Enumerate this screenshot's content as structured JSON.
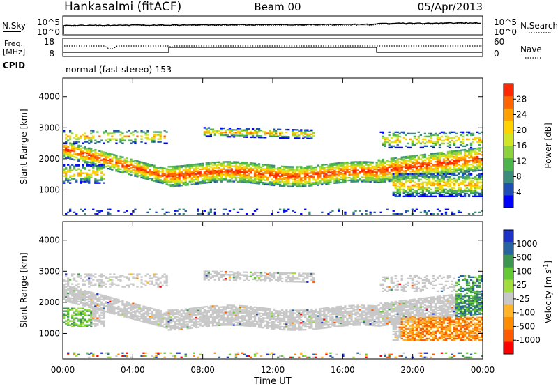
{
  "header": {
    "station": "Hankasalmi (fitACF)",
    "beam": "Beam 00",
    "date": "05/Apr/2013"
  },
  "noise_panel": {
    "left_label": "N.Sky",
    "right_label": "N.Search",
    "left_ticks": [
      "10^5",
      "10^0"
    ],
    "right_ticks": [
      "10^5",
      "10^0"
    ]
  },
  "freq_panel": {
    "left_label_1": "Freq.",
    "left_label_2": "[MHz]",
    "right_label": "Nave",
    "left_ticks": [
      "18",
      "8"
    ],
    "right_ticks": [
      "60",
      "0"
    ]
  },
  "cpid": {
    "label": "CPID",
    "mode": "normal (fast stereo) 153"
  },
  "chart_data": [
    {
      "type": "heatmap",
      "panel": "power",
      "ylabel": "Slant Range [km]",
      "ylim": [
        180,
        4600
      ],
      "yticks": [
        "1000",
        "2000",
        "3000",
        "4000"
      ],
      "x_ticks": [
        "00:00",
        "04:00",
        "08:00",
        "12:00",
        "16:00",
        "20:00",
        "00:00"
      ],
      "colorbar_label": "Power [dB]",
      "colorbar_ticks": [
        "4",
        "8",
        "12",
        "16",
        "20",
        "24",
        "28"
      ],
      "colorbar_colors": [
        "#0000ff",
        "#1f4fb4",
        "#3c8c7c",
        "#4cb44c",
        "#8cd23c",
        "#d2e628",
        "#ffd200",
        "#ffa000",
        "#ff6400",
        "#ff2800"
      ]
    },
    {
      "type": "heatmap",
      "panel": "velocity",
      "ylabel": "Slant Range [km]",
      "ylim": [
        180,
        4600
      ],
      "yticks": [
        "1000",
        "2000",
        "3000",
        "4000"
      ],
      "x_ticks": [
        "00:00",
        "04:00",
        "08:00",
        "12:00",
        "16:00",
        "20:00",
        "00:00"
      ],
      "xlabel": "Time UT",
      "colorbar_label": "Velocity [m s",
      "colorbar_unit_sup": "-1",
      "colorbar_ticks": [
        "1000",
        "500",
        "100",
        "25",
        "-25",
        "-100",
        "-500",
        "-1000"
      ],
      "colorbar_colors": [
        "#1e32c8",
        "#2864a0",
        "#3c9650",
        "#64c832",
        "#a0dc3c",
        "#c8c8c8",
        "#ffb428",
        "#ff8c00",
        "#ff5a00",
        "#ff0000"
      ]
    }
  ]
}
